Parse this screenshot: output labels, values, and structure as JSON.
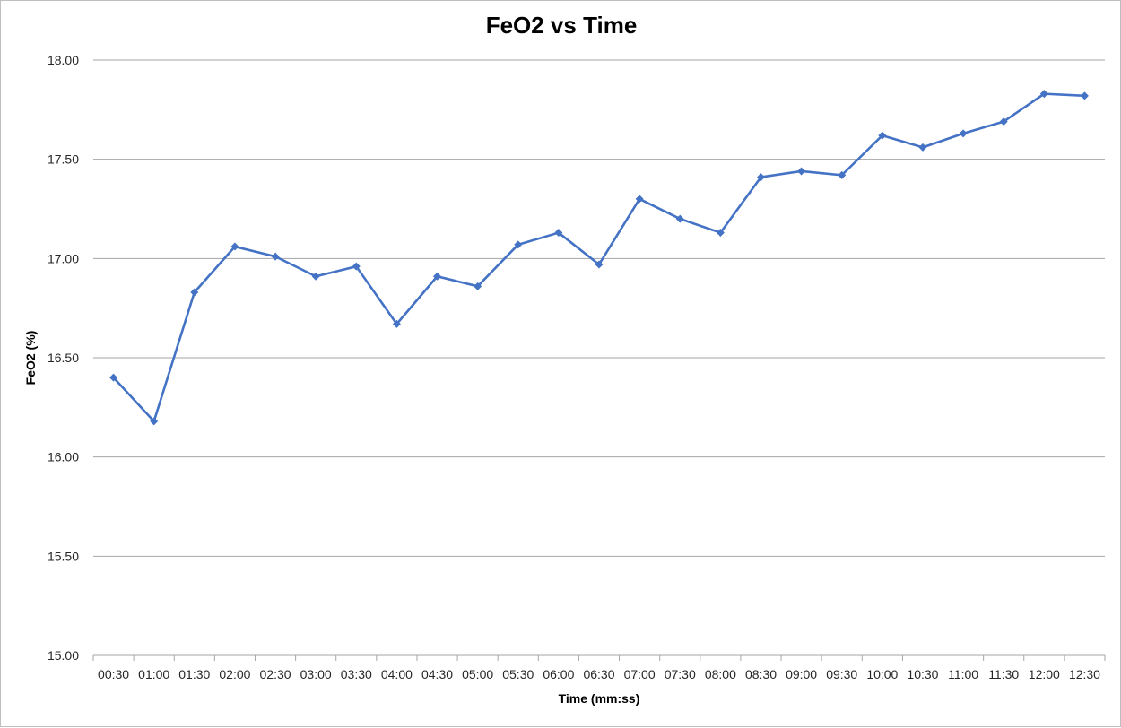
{
  "chart_data": {
    "type": "line",
    "title": "FeO2 vs Time",
    "xlabel": "Time (mm:ss)",
    "ylabel": "FeO2 (%)",
    "ylim": [
      15.0,
      18.0
    ],
    "y_ticks": [
      "15.00",
      "15.50",
      "16.00",
      "16.50",
      "17.00",
      "17.50",
      "18.00"
    ],
    "grid": true,
    "legend": "none",
    "marker": "diamond",
    "colors": {
      "series": "#4472c4",
      "grid": "#a6a6a6"
    },
    "categories": [
      "00:30",
      "01:00",
      "01:30",
      "02:00",
      "02:30",
      "03:00",
      "03:30",
      "04:00",
      "04:30",
      "05:00",
      "05:30",
      "06:00",
      "06:30",
      "07:00",
      "07:30",
      "08:00",
      "08:30",
      "09:00",
      "09:30",
      "10:00",
      "10:30",
      "11:00",
      "11:30",
      "12:00",
      "12:30"
    ],
    "series": [
      {
        "values": [
          16.4,
          16.18,
          16.83,
          17.06,
          17.01,
          16.91,
          16.96,
          16.67,
          16.91,
          16.86,
          17.07,
          17.13,
          16.97,
          17.3,
          17.2,
          17.13,
          17.41,
          17.44,
          17.42,
          17.62,
          17.56,
          17.63,
          17.69,
          17.83,
          17.82
        ]
      }
    ]
  }
}
